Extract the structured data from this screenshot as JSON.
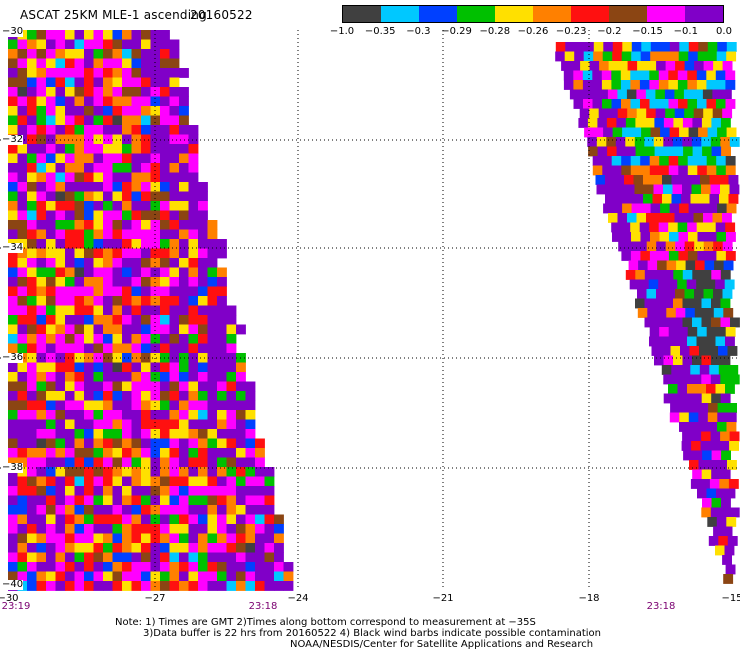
{
  "header": {
    "title": "ASCAT 25KM MLE-1 ascending",
    "date": "20160522"
  },
  "colorbar": {
    "colors": [
      "#404040",
      "#00c8ff",
      "#0040ff",
      "#00c000",
      "#ffe000",
      "#ff8000",
      "#ff1010",
      "#8b4513",
      "#ff00ff",
      "#8000c8"
    ],
    "tick_labels": [
      "−1.0",
      "−0.35",
      "−0.3",
      "−0.29",
      "−0.28",
      "−0.26",
      "−0.23",
      "−0.2",
      "−0.15",
      "−0.1",
      "0.0"
    ]
  },
  "axes": {
    "x_ticks": [
      "−30",
      "−27",
      "−24",
      "−21",
      "−18",
      "−15"
    ],
    "x_range": [
      -30,
      -15
    ],
    "y_ticks": [
      "−30",
      "−32",
      "−34",
      "−36",
      "−38",
      "−40"
    ],
    "y_range": [
      -40,
      -30
    ],
    "time_labels": [
      "23:19",
      "23:18",
      "23:18"
    ]
  },
  "note": {
    "line1": "Note: 1) Times are GMT 2)Times along bottom correspond to measurement at −35S",
    "line2": "3)Data buffer is 22 hrs from 20160522 4) Black wind barbs indicate possible contamination",
    "line3": "NOAA/NESDIS/Center for Satellite Applications and Research"
  }
}
